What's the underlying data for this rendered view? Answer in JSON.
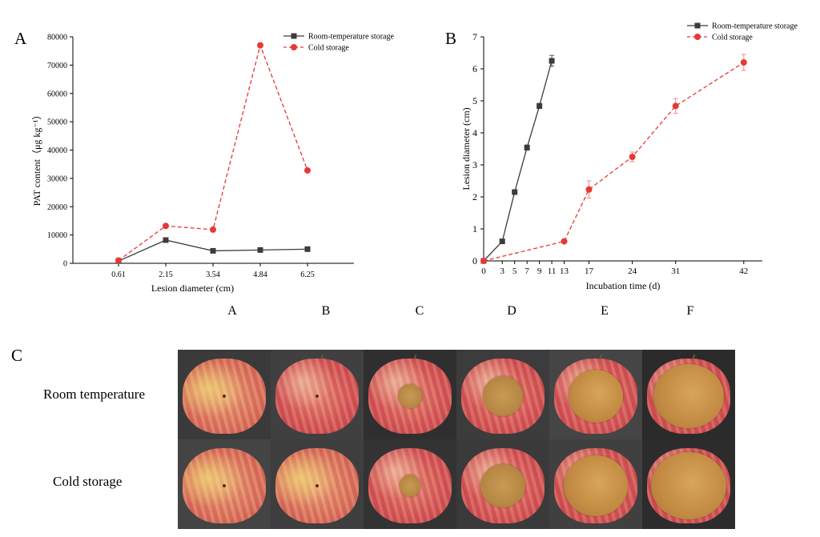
{
  "panels": {
    "A": "A",
    "B": "B",
    "C": "C"
  },
  "chart_data": [
    {
      "type": "line",
      "x_axis_type": "category",
      "categories": [
        "0.61",
        "2.15",
        "3.54",
        "4.84",
        "6.25"
      ],
      "xlabel": "Lesion diameter (cm)",
      "ylabel": "PAT content（μg kg⁻¹）",
      "ylim": [
        0,
        80000
      ],
      "yticks": [
        "0",
        "10000",
        "20000",
        "30000",
        "40000",
        "50000",
        "60000",
        "70000",
        "80000"
      ],
      "legend_position": "top-right",
      "series": [
        {
          "name": "Room-temperature storage",
          "color": "#3c3c3c",
          "marker": "square",
          "style": "solid",
          "values": [
            800,
            8200,
            4400,
            4700,
            5000
          ]
        },
        {
          "name": "Cold storage",
          "color": "#e53935",
          "marker": "circle",
          "style": "dashed",
          "values": [
            1000,
            13200,
            11900,
            77000,
            32800
          ]
        }
      ]
    },
    {
      "type": "line",
      "xlabel": "Incubation time (d)",
      "ylabel": "Lesion diameter (cm)",
      "xticks": [
        "0",
        "3",
        "5",
        "7",
        "9",
        "11",
        "13",
        "17",
        "24",
        "31",
        "42"
      ],
      "xlim": [
        0,
        45
      ],
      "ylim": [
        0,
        7
      ],
      "yticks": [
        "0",
        "1",
        "2",
        "3",
        "4",
        "5",
        "6",
        "7"
      ],
      "legend_position": "top-right",
      "series": [
        {
          "name": "Room-temperature storage",
          "color": "#3c3c3c",
          "marker": "square",
          "style": "solid",
          "x": [
            0,
            3,
            5,
            7,
            9,
            11
          ],
          "values": [
            0,
            0.61,
            2.15,
            3.54,
            4.84,
            6.25
          ],
          "errors": [
            0,
            0.04,
            0.07,
            0.08,
            0.08,
            0.17
          ]
        },
        {
          "name": "Cold storage",
          "color": "#e53935",
          "marker": "circle",
          "style": "dashed",
          "x": [
            0,
            13,
            17,
            24,
            31,
            42
          ],
          "values": [
            0,
            0.61,
            2.23,
            3.25,
            4.84,
            6.2
          ],
          "errors": [
            0,
            0.03,
            0.27,
            0.15,
            0.23,
            0.25
          ]
        }
      ]
    }
  ],
  "photos": {
    "columns": [
      "A",
      "B",
      "C",
      "D",
      "E",
      "F"
    ],
    "rows": [
      "Room temperature",
      "Cold storage"
    ]
  }
}
